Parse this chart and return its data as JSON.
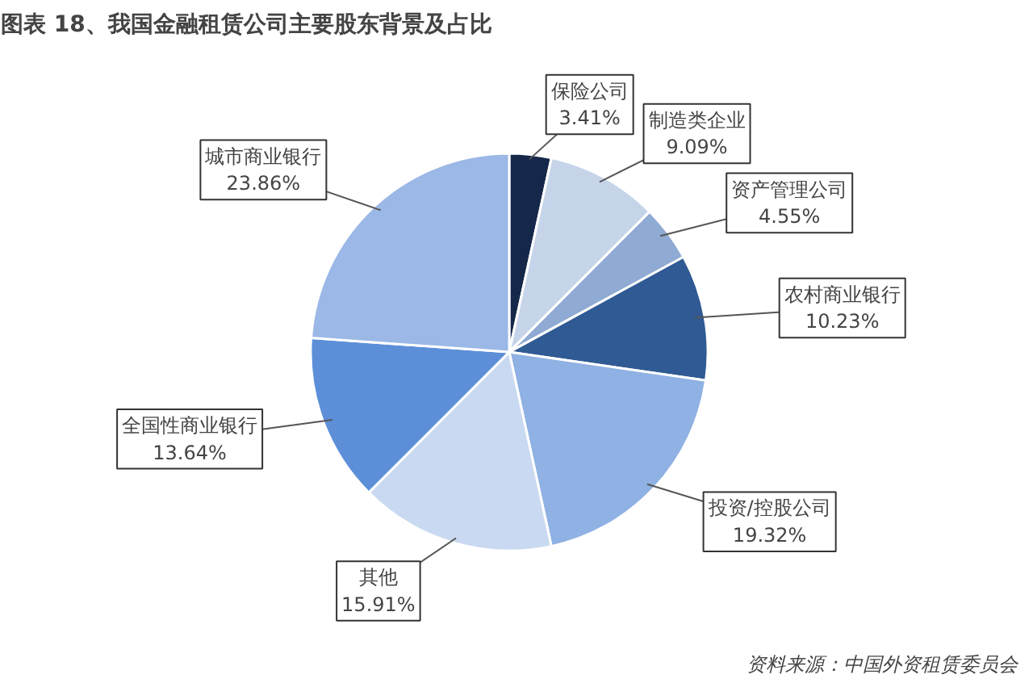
{
  "chart_data": {
    "type": "pie",
    "title": "图表 18、我国金融租赁公司主要股东背景及占比",
    "categories": [
      "保险公司",
      "制造类企业",
      "资产管理公司",
      "农村商业银行",
      "投资/控股公司",
      "其他",
      "全国性商业银行",
      "城市商业银行"
    ],
    "values": [
      3.41,
      9.09,
      4.55,
      10.23,
      19.32,
      15.91,
      13.64,
      23.86
    ],
    "colors": [
      "#15284a",
      "#c6d4ea",
      "#8faad3",
      "#2f5a94",
      "#8fb1e3",
      "#c9d9f1",
      "#5c8fd8",
      "#9bb8e6"
    ],
    "value_labels": [
      "3.41%",
      "9.09%",
      "4.55%",
      "10.23%",
      "19.32%",
      "15.91%",
      "13.64%",
      "23.86%"
    ],
    "annotations": [
      "资料来源：中国外资租赁委员会"
    ]
  }
}
